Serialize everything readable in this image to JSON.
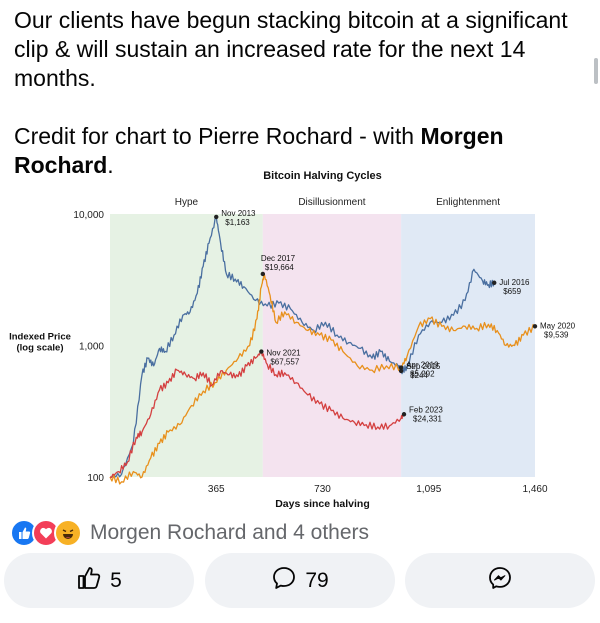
{
  "post": {
    "text": "Our clients have begun stacking bitcoin at a significant clip & will sustain an increased rate for the next 14 months.",
    "credit_prefix": "Credit for chart to Pierre Rochard - with ",
    "credit_mention": "Morgen Rochard",
    "credit_suffix": "."
  },
  "reactions": {
    "icons": [
      "like-icon",
      "love-icon",
      "haha-icon"
    ],
    "text": "Morgen Rochard and 4 others"
  },
  "actions": {
    "like_count": "5",
    "comment_count": "79",
    "share_icon": "messenger-icon"
  },
  "colors": {
    "hype_band": "#e6f2e4",
    "disillusionment_band": "#f4e3ef",
    "enlightenment_band": "#e0e9f5",
    "blue_cycle": "#4a6fa0",
    "orange_cycle": "#e8901c",
    "red_cycle": "#d44040",
    "like_blue": "#1877f2"
  },
  "chart_data": {
    "type": "line",
    "title": "Bitcoin Halving Cycles",
    "xlabel": "Days since halving",
    "ylabel": "Indexed Price (log scale)",
    "yscale": "log",
    "xlim": [
      0,
      1460
    ],
    "ylim": [
      100,
      10000
    ],
    "x_ticks": [
      {
        "value": 365,
        "label": "365"
      },
      {
        "value": 730,
        "label": "730"
      },
      {
        "value": 1095,
        "label": "1,095"
      },
      {
        "value": 1460,
        "label": "1,460"
      }
    ],
    "y_ticks": [
      {
        "value": 100,
        "label": "100"
      },
      {
        "value": 1000,
        "label": "1,000"
      },
      {
        "value": 10000,
        "label": "10,000"
      }
    ],
    "phases": [
      {
        "name": "Hype",
        "start": 0,
        "end": 525
      },
      {
        "name": "Disillusionment",
        "start": 525,
        "end": 1000
      },
      {
        "name": "Enlightenment",
        "start": 1000,
        "end": 1460
      }
    ],
    "series": [
      {
        "color_key": "blue_cycle",
        "points": [
          [
            0,
            100
          ],
          [
            40,
            105
          ],
          [
            80,
            180
          ],
          [
            110,
            600
          ],
          [
            130,
            800
          ],
          [
            150,
            700
          ],
          [
            170,
            950
          ],
          [
            190,
            900
          ],
          [
            220,
            1200
          ],
          [
            250,
            1700
          ],
          [
            275,
            1800
          ],
          [
            300,
            2500
          ],
          [
            320,
            4000
          ],
          [
            340,
            6000
          ],
          [
            365,
            9500
          ],
          [
            380,
            6000
          ],
          [
            400,
            3500
          ],
          [
            430,
            3200
          ],
          [
            460,
            2800
          ],
          [
            500,
            2200
          ],
          [
            540,
            2000
          ],
          [
            580,
            2100
          ],
          [
            620,
            1900
          ],
          [
            660,
            1500
          ],
          [
            700,
            1300
          ],
          [
            740,
            1500
          ],
          [
            780,
            1200
          ],
          [
            820,
            1050
          ],
          [
            860,
            950
          ],
          [
            900,
            800
          ],
          [
            930,
            900
          ],
          [
            960,
            760
          ],
          [
            990,
            700
          ],
          [
            1000,
            640
          ],
          [
            1020,
            680
          ],
          [
            1060,
            1200
          ],
          [
            1100,
            1500
          ],
          [
            1140,
            1500
          ],
          [
            1180,
            1700
          ],
          [
            1220,
            2200
          ],
          [
            1250,
            3800
          ],
          [
            1280,
            3100
          ],
          [
            1300,
            2900
          ],
          [
            1320,
            3000
          ]
        ]
      },
      {
        "color_key": "orange_cycle",
        "points": [
          [
            0,
            100
          ],
          [
            40,
            92
          ],
          [
            80,
            110
          ],
          [
            110,
            100
          ],
          [
            140,
            140
          ],
          [
            170,
            180
          ],
          [
            200,
            220
          ],
          [
            240,
            250
          ],
          [
            280,
            350
          ],
          [
            320,
            450
          ],
          [
            360,
            520
          ],
          [
            400,
            650
          ],
          [
            440,
            800
          ],
          [
            480,
            1000
          ],
          [
            505,
            1600
          ],
          [
            520,
            2800
          ],
          [
            530,
            3500
          ],
          [
            550,
            2400
          ],
          [
            570,
            1500
          ],
          [
            600,
            1800
          ],
          [
            640,
            1500
          ],
          [
            680,
            1300
          ],
          [
            720,
            1200
          ],
          [
            760,
            1100
          ],
          [
            800,
            900
          ],
          [
            850,
            700
          ],
          [
            900,
            650
          ],
          [
            950,
            700
          ],
          [
            1000,
            680
          ],
          [
            1020,
            820
          ],
          [
            1060,
            1400
          ],
          [
            1100,
            1600
          ],
          [
            1140,
            1400
          ],
          [
            1180,
            1300
          ],
          [
            1220,
            1400
          ],
          [
            1260,
            1350
          ],
          [
            1300,
            1450
          ],
          [
            1330,
            1300
          ],
          [
            1360,
            1000
          ],
          [
            1390,
            1000
          ],
          [
            1420,
            1200
          ],
          [
            1460,
            1400
          ]
        ]
      },
      {
        "color_key": "red_cycle",
        "points": [
          [
            0,
            100
          ],
          [
            30,
            110
          ],
          [
            60,
            130
          ],
          [
            90,
            200
          ],
          [
            110,
            220
          ],
          [
            140,
            300
          ],
          [
            170,
            460
          ],
          [
            200,
            520
          ],
          [
            230,
            650
          ],
          [
            260,
            600
          ],
          [
            290,
            560
          ],
          [
            320,
            620
          ],
          [
            350,
            500
          ],
          [
            380,
            640
          ],
          [
            410,
            600
          ],
          [
            440,
            580
          ],
          [
            470,
            700
          ],
          [
            500,
            800
          ],
          [
            520,
            900
          ],
          [
            540,
            720
          ],
          [
            570,
            600
          ],
          [
            600,
            620
          ],
          [
            640,
            520
          ],
          [
            680,
            420
          ],
          [
            720,
            360
          ],
          [
            760,
            320
          ],
          [
            800,
            280
          ],
          [
            840,
            260
          ],
          [
            880,
            250
          ],
          [
            920,
            240
          ],
          [
            960,
            245
          ],
          [
            1000,
            280
          ],
          [
            1010,
            300
          ]
        ]
      }
    ],
    "annotations": [
      {
        "label": "Nov 2013",
        "value": "$1,163",
        "x": 365,
        "y": 9500,
        "series": "blue_cycle"
      },
      {
        "label": "Dec 2017",
        "value": "$19,664",
        "x": 525,
        "y": 3500,
        "series": "orange_cycle"
      },
      {
        "label": "Nov 2021",
        "value": "$67,557",
        "x": 520,
        "y": 900,
        "series": "red_cycle"
      },
      {
        "label": "Sep 2015",
        "value": "$244",
        "x": 1000,
        "y": 640,
        "series": "blue_cycle"
      },
      {
        "label": "Apr 2019",
        "value": "$5,292",
        "x": 1000,
        "y": 680,
        "series": "orange_cycle"
      },
      {
        "label": "Feb 2023",
        "value": "$24,331",
        "x": 1010,
        "y": 300,
        "series": "red_cycle"
      },
      {
        "label": "Jul 2016",
        "value": "$659",
        "x": 1320,
        "y": 3000,
        "series": "blue_cycle"
      },
      {
        "label": "May 2020",
        "value": "$9,539",
        "x": 1460,
        "y": 1400,
        "series": "orange_cycle"
      }
    ]
  }
}
